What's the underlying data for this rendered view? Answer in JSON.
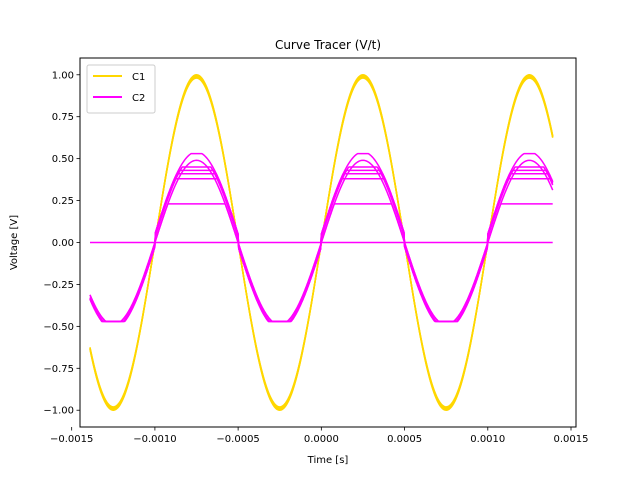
{
  "chart_data": {
    "type": "line",
    "title": "Curve Tracer (V/t)",
    "xlabel": "Time [s]",
    "ylabel": "Voltage [V]",
    "xlim": [
      -0.00145,
      0.00153
    ],
    "ylim": [
      -1.1,
      1.1
    ],
    "grid": false,
    "legend_position": "top-left",
    "x_ticks": [
      -0.0015,
      -0.001,
      -0.0005,
      0.0,
      0.0005,
      0.001,
      0.0015
    ],
    "x_tick_labels": [
      "−0.0015",
      "−0.0010",
      "−0.0005",
      "0.0000",
      "0.0005",
      "0.0010",
      "0.0015"
    ],
    "y_ticks": [
      -1.0,
      -0.75,
      -0.5,
      -0.25,
      0.0,
      0.25,
      0.5,
      0.75,
      1.0
    ],
    "y_tick_labels": [
      "−1.00",
      "−0.75",
      "−0.50",
      "−0.25",
      "0.00",
      "0.25",
      "0.50",
      "0.75",
      "1.00"
    ],
    "x_range": [
      -0.00139,
      0.00139
    ],
    "frequency_hz": 1000,
    "series": [
      {
        "name": "C1",
        "color": "#FFD700",
        "kind": "sine",
        "amplitudes": [
          1.0,
          0.995,
          0.99,
          0.985,
          0.98
        ]
      },
      {
        "name": "C2",
        "color": "#FF00FF",
        "kind": "diode-clip",
        "traces": [
          {
            "amplitude": 0.53,
            "drop": 0.05
          },
          {
            "amplitude": 0.49,
            "drop": 0.0
          },
          {
            "amplitude": 0.23,
            "drop": 0.0
          },
          {
            "amplitude": 0.0,
            "drop": 0.0
          },
          {
            "amplitude": 0.45,
            "drop": 0.03
          },
          {
            "amplitude": 0.43,
            "drop": 0.04
          },
          {
            "amplitude": 0.41,
            "drop": 0.05
          },
          {
            "amplitude": 0.38,
            "drop": 0.05
          }
        ]
      }
    ]
  }
}
